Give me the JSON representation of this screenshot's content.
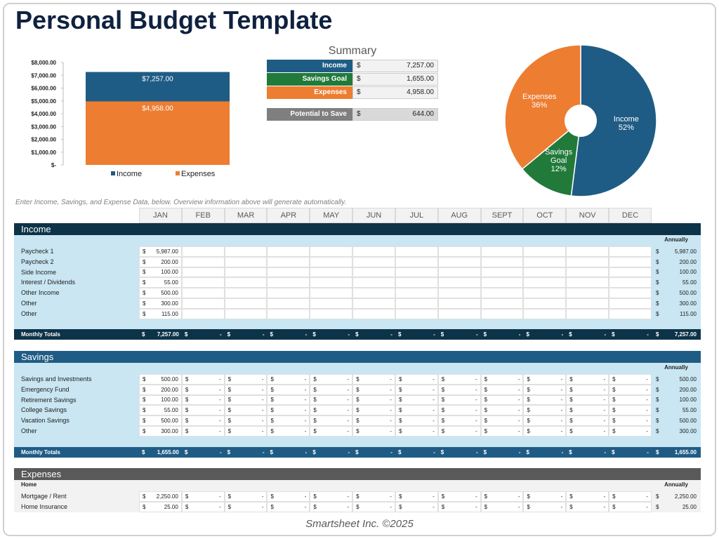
{
  "header": {
    "title": "Personal Budget Template"
  },
  "chart_data": [
    {
      "type": "bar",
      "categories": [
        null
      ],
      "series": [
        {
          "name": "Income",
          "color": "#1f5c85",
          "values": [
            7257
          ],
          "value_labels": [
            "$7,257.00"
          ]
        },
        {
          "name": "Expenses",
          "color": "#ed7d31",
          "values": [
            4958
          ],
          "value_labels": [
            "$4,958.00"
          ]
        }
      ],
      "ylim": [
        0,
        8000
      ],
      "yticks": [
        {
          "value": 0,
          "label": "$-"
        },
        {
          "value": 1000,
          "label": "$1,000.00"
        },
        {
          "value": 2000,
          "label": "$2,000.00"
        },
        {
          "value": 3000,
          "label": "$3,000.00"
        },
        {
          "value": 4000,
          "label": "$4,000.00"
        },
        {
          "value": 5000,
          "label": "$5,000.00"
        },
        {
          "value": 6000,
          "label": "$6,000.00"
        },
        {
          "value": 7000,
          "label": "$7,000.00"
        },
        {
          "value": 8000,
          "label": "$8,000.00"
        }
      ],
      "legend": "bottom"
    },
    {
      "type": "pie",
      "categories": [
        "Income",
        "Savings Goal",
        "Expenses"
      ],
      "values": [
        52,
        12,
        36
      ],
      "value_labels": [
        "52%",
        "12%",
        "36%"
      ],
      "colors": [
        "#1f5c85",
        "#217a3a",
        "#ed7d31"
      ]
    }
  ],
  "currency": "$",
  "summary": {
    "title": "Summary",
    "rows": [
      {
        "label": "Income",
        "value": "7,257.00"
      },
      {
        "label": "Savings Goal",
        "value": "1,655.00"
      },
      {
        "label": "Expenses",
        "value": "4,958.00"
      }
    ],
    "potential": {
      "label": "Potential to Save",
      "value": "644.00"
    }
  },
  "instruction": "Enter Income, Savings, and Expense Data, below.  Overview information above will generate automatically.",
  "months": [
    "JAN",
    "FEB",
    "MAR",
    "APR",
    "MAY",
    "JUN",
    "JUL",
    "AUG",
    "SEPT",
    "OCT",
    "NOV",
    "DEC"
  ],
  "sections": [
    {
      "title": "Income",
      "annual_header": "Annually",
      "rows": [
        {
          "label": "Paycheck 1",
          "values": [
            "5,987.00"
          ],
          "annual": "5,987.00"
        },
        {
          "label": "Paycheck 2",
          "values": [
            "200.00"
          ],
          "annual": "200.00"
        },
        {
          "label": "Side Income",
          "values": [
            "100.00"
          ],
          "annual": "100.00"
        },
        {
          "label": "Interest / Dividends",
          "values": [
            "55.00"
          ],
          "annual": "55.00"
        },
        {
          "label": "Other Income",
          "values": [
            "500.00"
          ],
          "annual": "500.00"
        },
        {
          "label": "Other",
          "values": [
            "300.00"
          ],
          "annual": "300.00"
        },
        {
          "label": "Other",
          "values": [
            "115.00"
          ],
          "annual": "115.00"
        }
      ],
      "totals": {
        "label": "Monthly Totals",
        "values": [
          "7,257.00",
          "-",
          "-",
          "-",
          "-",
          "-",
          "-",
          "-",
          "-",
          "-",
          "-",
          "-"
        ],
        "annual": "7,257.00"
      }
    },
    {
      "title": "Savings",
      "annual_header": "Annually",
      "rows": [
        {
          "label": "Savings and Investments",
          "values": [
            "500.00",
            "-",
            "-",
            "-",
            "-",
            "-",
            "-",
            "-",
            "-",
            "-",
            "-",
            "-"
          ],
          "annual": "500.00"
        },
        {
          "label": "Emergency Fund",
          "values": [
            "200.00",
            "-",
            "-",
            "-",
            "-",
            "-",
            "-",
            "-",
            "-",
            "-",
            "-",
            "-"
          ],
          "annual": "200.00"
        },
        {
          "label": "Retirement Savings",
          "values": [
            "100.00",
            "-",
            "-",
            "-",
            "-",
            "-",
            "-",
            "-",
            "-",
            "-",
            "-",
            "-"
          ],
          "annual": "100.00"
        },
        {
          "label": "College Savings",
          "values": [
            "55.00",
            "-",
            "-",
            "-",
            "-",
            "-",
            "-",
            "-",
            "-",
            "-",
            "-",
            "-"
          ],
          "annual": "55.00"
        },
        {
          "label": "Vacation Savings",
          "values": [
            "500.00",
            "-",
            "-",
            "-",
            "-",
            "-",
            "-",
            "-",
            "-",
            "-",
            "-",
            "-"
          ],
          "annual": "500.00"
        },
        {
          "label": "Other",
          "values": [
            "300.00",
            "-",
            "-",
            "-",
            "-",
            "-",
            "-",
            "-",
            "-",
            "-",
            "-",
            "-"
          ],
          "annual": "300.00"
        }
      ],
      "totals": {
        "label": "Monthly Totals",
        "values": [
          "1,655.00",
          "-",
          "-",
          "-",
          "-",
          "-",
          "-",
          "-",
          "-",
          "-",
          "-",
          "-"
        ],
        "annual": "1,655.00"
      }
    },
    {
      "title": "Expenses",
      "subheader": "Home",
      "annual_header": "Annually",
      "rows": [
        {
          "label": "Mortgage / Rent",
          "values": [
            "2,250.00",
            "-",
            "-",
            "-",
            "-",
            "-",
            "-",
            "-",
            "-",
            "-",
            "-",
            "-"
          ],
          "annual": "2,250.00"
        },
        {
          "label": "Home Insurance",
          "values": [
            "25.00",
            "-",
            "-",
            "-",
            "-",
            "-",
            "-",
            "-",
            "-",
            "-",
            "-",
            "-"
          ],
          "annual": "25.00"
        }
      ]
    }
  ],
  "footer": "Smartsheet Inc. ©2025"
}
